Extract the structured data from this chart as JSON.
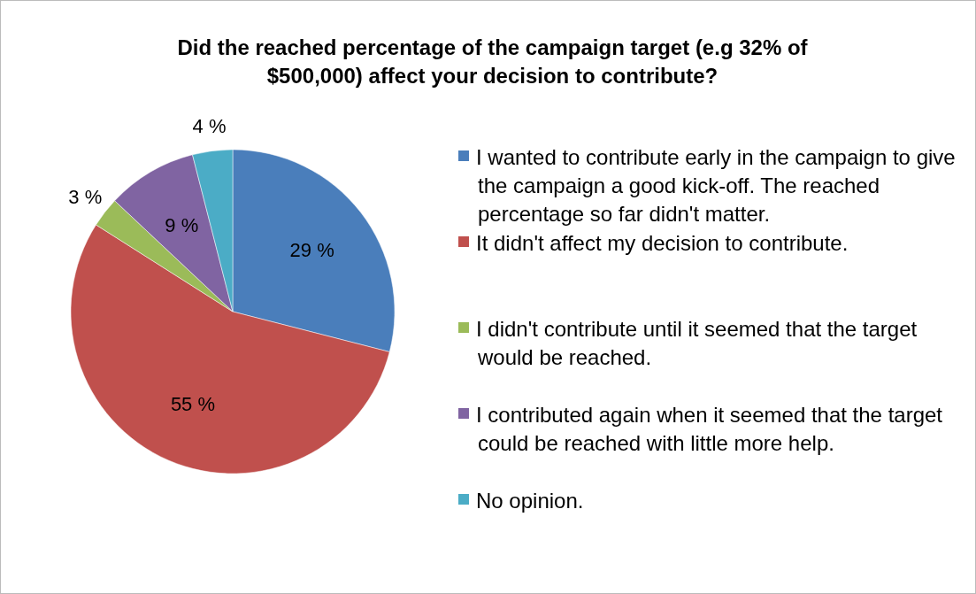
{
  "chart_data": {
    "type": "pie",
    "title": "Did the reached percentage of the campaign target (e.g 32% of $500,000) affect your decision to contribute?",
    "categories": [
      "I wanted to contribute early in the campaign to give the campaign a good kick-off. The reached percentage so far didn't matter.",
      "It didn't affect my decision to contribute.",
      "I didn't contribute until it seemed that the target would be reached.",
      "I contributed again when it seemed that the target could be reached with little more help.",
      "No opinion."
    ],
    "values": [
      29,
      55,
      3,
      9,
      4
    ],
    "colors": [
      "#4a7ebb",
      "#c0504d",
      "#9bbb59",
      "#8064a2",
      "#4bacc6"
    ],
    "value_labels": [
      "29 %",
      "55 %",
      "3 %",
      "9 %",
      "4 %"
    ],
    "legend": "right"
  }
}
